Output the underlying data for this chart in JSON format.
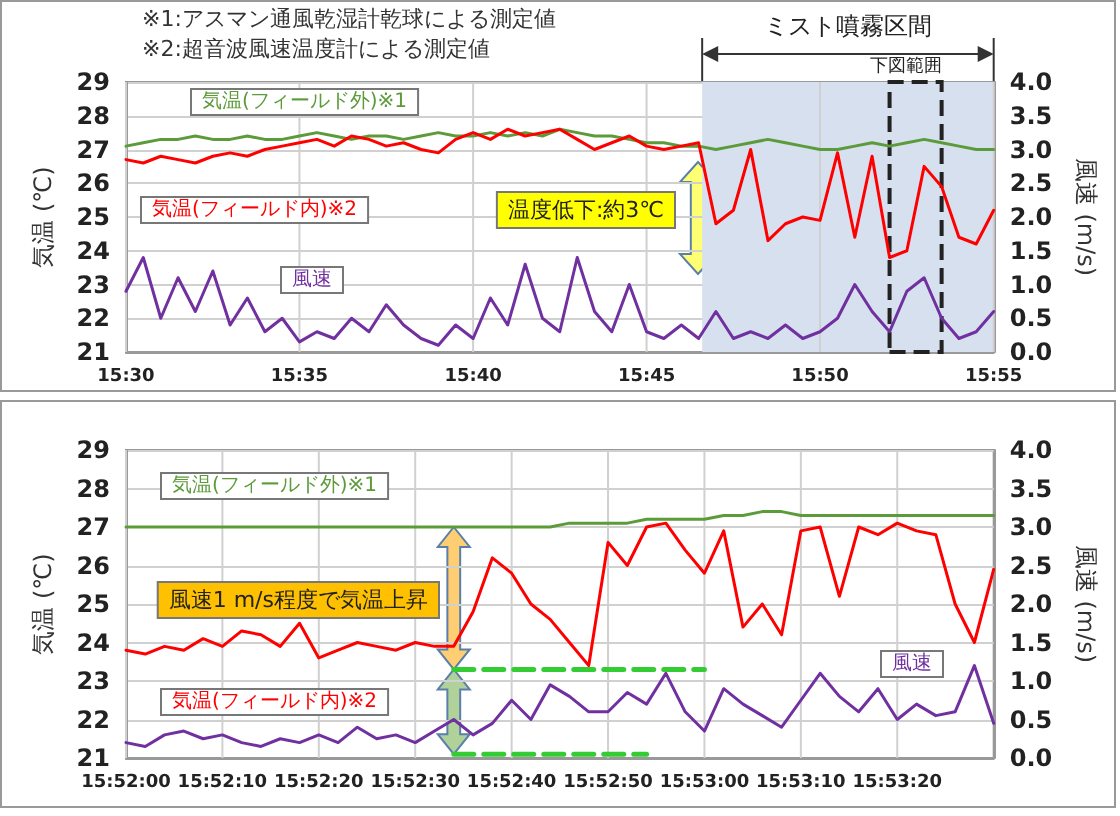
{
  "chart_data": [
    {
      "type": "line",
      "annotations": [
        "※1:アスマン通風乾湿計乾球による測定値",
        "※2:超音波風速温度計による測定値",
        "温度低下:約3℃"
      ],
      "ylabel": "気温 (℃)",
      "y2label": "風速 (m/s)",
      "marker": "none",
      "grid": true,
      "x": [
        15.5,
        15.5083,
        15.5167,
        15.525,
        15.5333,
        15.5417,
        15.55,
        15.5583,
        15.5667,
        15.575,
        15.5833,
        15.5917,
        15.6,
        15.6083,
        15.6167,
        15.625,
        15.6333,
        15.6417,
        15.65,
        15.6583,
        15.6667,
        15.675,
        15.6833,
        15.6917,
        15.7,
        15.7083,
        15.7167,
        15.725,
        15.7333,
        15.7417,
        15.75,
        15.7583,
        15.7667,
        15.775,
        15.7833,
        15.7917,
        15.8,
        15.8083,
        15.8167,
        15.825,
        15.8333,
        15.8417,
        15.85,
        15.8583,
        15.8667,
        15.875,
        15.8833,
        15.8917,
        15.9,
        15.9083,
        15.9167
      ],
      "series": [
        {
          "name": "気温(フィールド外)※1",
          "color": "#5b9b3a",
          "values": [
            27.1,
            27.2,
            27.3,
            27.3,
            27.4,
            27.3,
            27.3,
            27.4,
            27.3,
            27.3,
            27.4,
            27.5,
            27.4,
            27.3,
            27.4,
            27.4,
            27.3,
            27.4,
            27.5,
            27.4,
            27.4,
            27.5,
            27.4,
            27.5,
            27.4,
            27.6,
            27.5,
            27.4,
            27.4,
            27.3,
            27.2,
            27.2,
            27.1,
            27.1,
            27.0,
            27.1,
            27.2,
            27.3,
            27.2,
            27.1,
            27.0,
            27.0,
            27.1,
            27.2,
            27.1,
            27.2,
            27.3,
            27.2,
            27.1,
            27.0,
            27.0
          ]
        },
        {
          "name": "気温(フィールド内)※2",
          "color": "#ff0000",
          "values": [
            26.7,
            26.6,
            26.8,
            26.7,
            26.6,
            26.8,
            26.9,
            26.8,
            27.0,
            27.1,
            27.2,
            27.3,
            27.1,
            27.4,
            27.3,
            27.1,
            27.2,
            27.0,
            26.9,
            27.3,
            27.5,
            27.3,
            27.6,
            27.4,
            27.5,
            27.6,
            27.3,
            27.0,
            27.2,
            27.4,
            27.1,
            27.0,
            27.1,
            27.2,
            24.8,
            25.2,
            27.0,
            24.3,
            24.8,
            25.0,
            24.9,
            26.9,
            24.4,
            26.8,
            23.8,
            24.0,
            26.5,
            25.9,
            24.4,
            24.2,
            25.2
          ]
        },
        {
          "name": "風速",
          "color": "#7030a0",
          "axis": "y2",
          "values": [
            0.9,
            1.4,
            0.5,
            1.1,
            0.6,
            1.2,
            0.4,
            0.8,
            0.3,
            0.5,
            0.15,
            0.3,
            0.2,
            0.5,
            0.3,
            0.7,
            0.4,
            0.2,
            0.1,
            0.4,
            0.2,
            0.8,
            0.4,
            1.3,
            0.5,
            0.3,
            1.4,
            0.6,
            0.3,
            1.0,
            0.3,
            0.2,
            0.4,
            0.2,
            0.6,
            0.2,
            0.3,
            0.2,
            0.4,
            0.2,
            0.3,
            0.5,
            1.0,
            0.6,
            0.3,
            0.9,
            1.1,
            0.5,
            0.2,
            0.3,
            0.6
          ]
        }
      ],
      "bands": [
        {
          "axis": "x",
          "from": 15.7767,
          "to": 15.9167,
          "label": "ミスト噴霧区間",
          "color": "#d6e0ee"
        },
        {
          "axis": "x",
          "from": 15.8667,
          "to": 15.8917,
          "label": "下図範囲",
          "color": "#d6e0ee"
        }
      ],
      "xlim": [
        15.5,
        15.9167
      ],
      "xticks": [
        {
          "value": 15.5,
          "label": "15:30"
        },
        {
          "value": 15.5833,
          "label": "15:35"
        },
        {
          "value": 15.6667,
          "label": "15:40"
        },
        {
          "value": 15.75,
          "label": "15:45"
        },
        {
          "value": 15.8333,
          "label": "15:50"
        },
        {
          "value": 15.9167,
          "label": "15:55"
        }
      ],
      "ylim": [
        21,
        29
      ],
      "yticks": [
        21,
        22,
        23,
        24,
        25,
        26,
        27,
        28,
        29
      ],
      "y2lim": [
        0,
        4
      ],
      "y2ticks": [
        {
          "value": 0,
          "label": "0.0"
        },
        0.5,
        {
          "value": 1,
          "label": "1.0"
        },
        1.5,
        {
          "value": 2,
          "label": "2.0"
        },
        2.5,
        {
          "value": 3,
          "label": "3.0"
        },
        3.5,
        {
          "value": 4,
          "label": "4.0"
        }
      ]
    },
    {
      "type": "line",
      "annotations": [
        "風速1 m/s程度で気温上昇"
      ],
      "ylabel": "気温 (℃)",
      "y2label": "風速 (m/s)",
      "marker": "none",
      "grid": true,
      "x": [
        15.866667,
        15.867222,
        15.867778,
        15.868333,
        15.868889,
        15.869444,
        15.87,
        15.870556,
        15.871111,
        15.871667,
        15.872222,
        15.872778,
        15.873333,
        15.873889,
        15.874444,
        15.875,
        15.875556,
        15.876111,
        15.876667,
        15.877222,
        15.877778,
        15.878333,
        15.878889,
        15.879444,
        15.88,
        15.880556,
        15.881111,
        15.881667,
        15.882222,
        15.882778,
        15.883333,
        15.883889,
        15.884444,
        15.885,
        15.885556,
        15.886111,
        15.886667,
        15.887222,
        15.887778,
        15.888333,
        15.888889,
        15.889444,
        15.89,
        15.890556,
        15.891111,
        15.891667
      ],
      "series": [
        {
          "name": "気温(フィールド外)※1",
          "color": "#5b9b3a",
          "values": [
            27.0,
            27.0,
            27.0,
            27.0,
            27.0,
            27.0,
            27.0,
            27.0,
            27.0,
            27.0,
            27.0,
            27.0,
            27.0,
            27.0,
            27.0,
            27.0,
            27.0,
            27.0,
            27.0,
            27.0,
            27.0,
            27.0,
            27.0,
            27.1,
            27.1,
            27.1,
            27.1,
            27.2,
            27.2,
            27.2,
            27.2,
            27.3,
            27.3,
            27.4,
            27.4,
            27.3,
            27.3,
            27.3,
            27.3,
            27.3,
            27.3,
            27.3,
            27.3,
            27.3,
            27.3,
            27.3
          ]
        },
        {
          "name": "気温(フィールド内)※2",
          "color": "#ff0000",
          "values": [
            23.8,
            23.7,
            23.9,
            23.8,
            24.1,
            23.9,
            24.3,
            24.2,
            23.9,
            24.5,
            23.6,
            23.8,
            24.0,
            23.9,
            23.8,
            24.0,
            23.9,
            23.9,
            24.8,
            26.2,
            25.8,
            25.0,
            24.6,
            24.0,
            23.4,
            26.6,
            26.0,
            27.0,
            27.1,
            26.4,
            25.8,
            26.9,
            24.4,
            25.0,
            24.2,
            26.9,
            27.0,
            25.2,
            27.0,
            26.8,
            27.1,
            26.9,
            26.8,
            25.0,
            24.0,
            25.9
          ]
        },
        {
          "name": "風速",
          "color": "#7030a0",
          "axis": "y2",
          "values": [
            0.2,
            0.15,
            0.3,
            0.35,
            0.25,
            0.3,
            0.2,
            0.15,
            0.25,
            0.2,
            0.3,
            0.2,
            0.4,
            0.25,
            0.3,
            0.2,
            0.35,
            0.5,
            0.3,
            0.45,
            0.75,
            0.5,
            0.95,
            0.8,
            0.6,
            0.6,
            0.85,
            0.7,
            1.1,
            0.6,
            0.35,
            0.9,
            0.7,
            0.55,
            0.4,
            0.75,
            1.1,
            0.8,
            0.6,
            0.9,
            0.5,
            0.7,
            0.55,
            0.6,
            1.2,
            0.45
          ]
        },
        {
          "type": "line",
          "color": "#33cc33",
          "line_style": "dashed",
          "x": [
            15.876111,
            15.883333
          ],
          "values": [
            23.3,
            23.3
          ]
        },
        {
          "type": "line",
          "color": "#33cc33",
          "line_style": "dashed",
          "x": [
            15.876111,
            15.881667
          ],
          "values": [
            21.1,
            21.1
          ]
        }
      ],
      "xlim": [
        15.866667,
        15.891667
      ],
      "xticks": [
        {
          "value": 15.866667,
          "label": "15:52:00"
        },
        {
          "value": 15.869444,
          "label": "15:52:10"
        },
        {
          "value": 15.872222,
          "label": "15:52:20"
        },
        {
          "value": 15.875,
          "label": "15:52:30"
        },
        {
          "value": 15.877778,
          "label": "15:52:40"
        },
        {
          "value": 15.880556,
          "label": "15:52:50"
        },
        {
          "value": 15.883333,
          "label": "15:53:00"
        },
        {
          "value": 15.886111,
          "label": "15:53:10"
        },
        {
          "value": 15.888889,
          "label": "15:53:20"
        }
      ],
      "ylim": [
        21,
        29
      ],
      "yticks": [
        21,
        22,
        23,
        24,
        25,
        26,
        27,
        28,
        29
      ],
      "y2lim": [
        0,
        4
      ],
      "y2ticks": [
        {
          "value": 0,
          "label": "0.0"
        },
        0.5,
        {
          "value": 1,
          "label": "1.0"
        },
        1.5,
        {
          "value": 2,
          "label": "2.0"
        },
        2.5,
        {
          "value": 3,
          "label": "3.0"
        },
        3.5,
        {
          "value": 4,
          "label": "4.0"
        }
      ]
    }
  ]
}
